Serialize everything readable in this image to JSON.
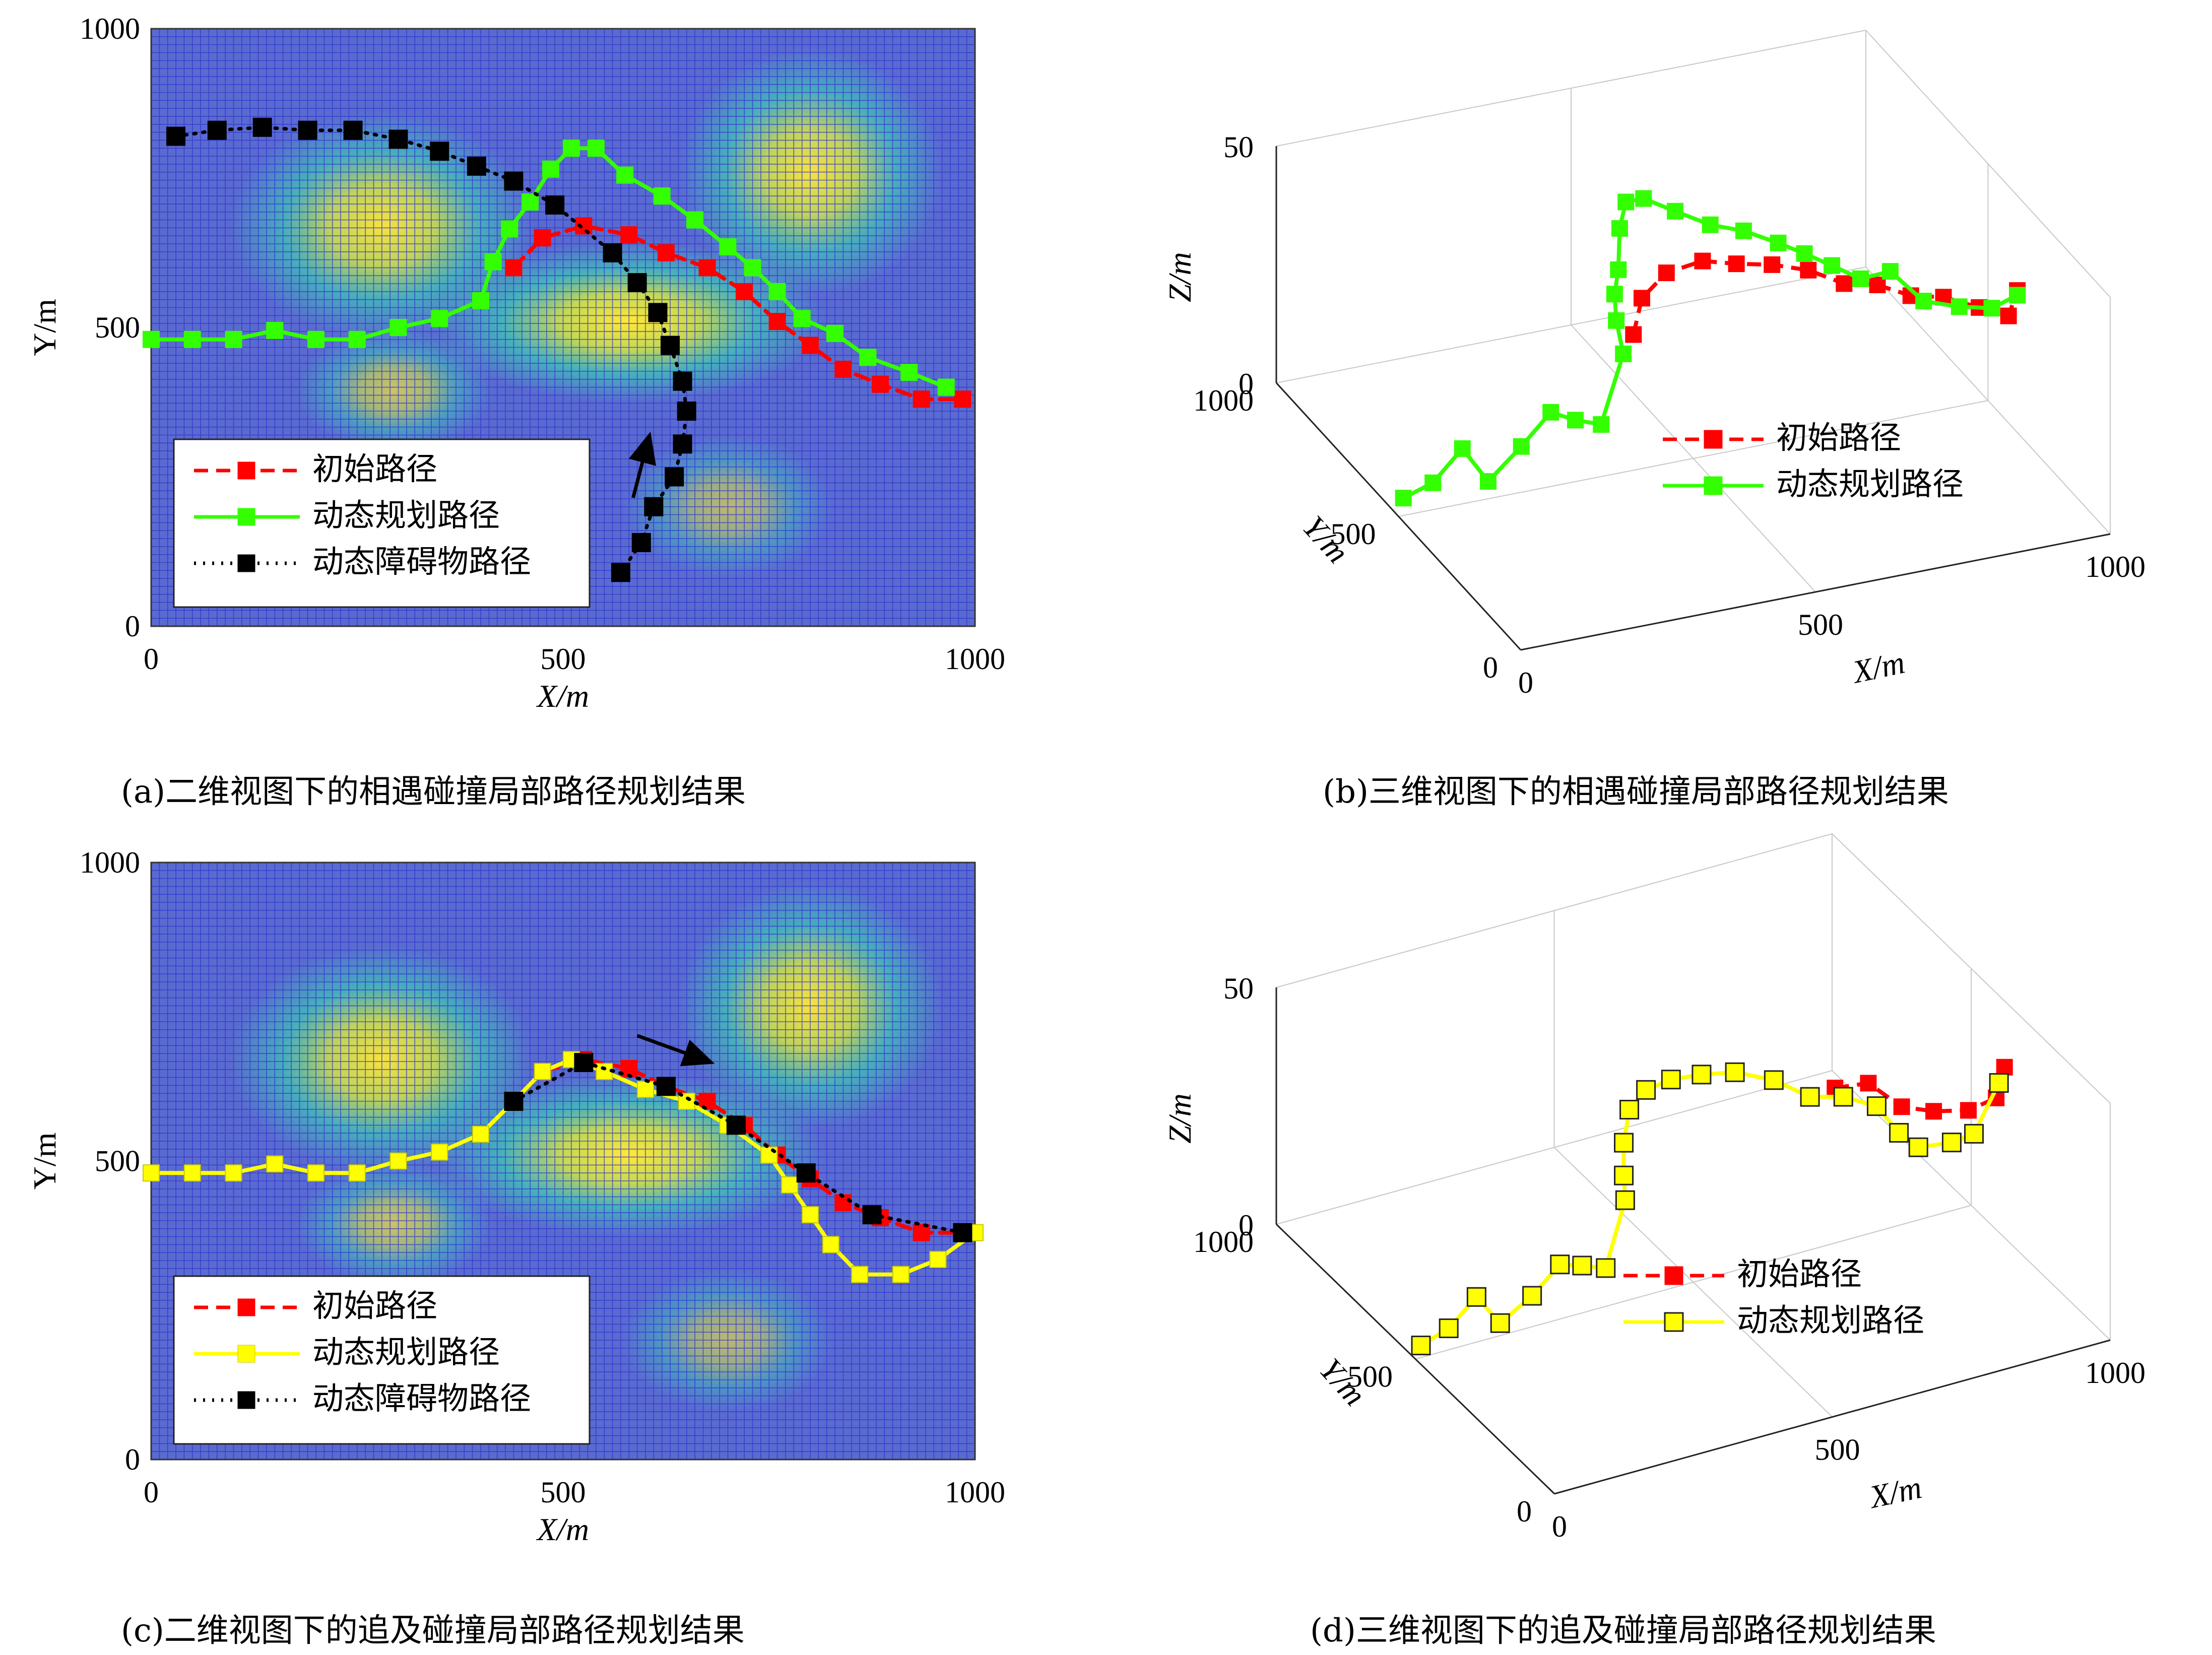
{
  "captions": {
    "a": "(a)二维视图下的相遇碰撞局部路径规划结果",
    "b": "(b)三维视图下的相遇碰撞局部路径规划结果",
    "c": "(c)二维视图下的追及碰撞局部路径规划结果",
    "d": "(d)三维视图下的追及碰撞局部路径规划结果"
  },
  "colors": {
    "initial": "#ff0000",
    "dynamic_green": "#33ff00",
    "dynamic_yellow": "#ffff00",
    "obstacle": "#000000",
    "grid_line": "#2f32d0",
    "background": "#5a6bd0"
  },
  "chart_data": [
    {
      "id": "a",
      "type": "line",
      "view": "2d",
      "xlabel": "X/m",
      "ylabel": "Y/m",
      "xlim": [
        0,
        1000
      ],
      "ylim": [
        0,
        1000
      ],
      "xticks": [
        "0",
        "500",
        "1000"
      ],
      "yticks": [
        "0",
        "500",
        "1000"
      ],
      "legend_position": "bottom-left",
      "hotspots": [
        {
          "x": 280,
          "y": 670,
          "rx": 115,
          "ry": 120,
          "level": 0.95
        },
        {
          "x": 800,
          "y": 760,
          "rx": 100,
          "ry": 130,
          "level": 0.95
        },
        {
          "x": 580,
          "y": 510,
          "rx": 150,
          "ry": 85,
          "level": 1.0
        },
        {
          "x": 295,
          "y": 395,
          "rx": 75,
          "ry": 65,
          "level": 0.7
        },
        {
          "x": 700,
          "y": 200,
          "rx": 80,
          "ry": 75,
          "level": 0.6
        }
      ],
      "series": [
        {
          "name": "初始路径",
          "color": "#ff0000",
          "dash": "dashed",
          "marker": "filled",
          "points": [
            [
              440,
              600
            ],
            [
              475,
              650
            ],
            [
              525,
              670
            ],
            [
              580,
              655
            ],
            [
              625,
              625
            ],
            [
              675,
              600
            ],
            [
              720,
              560
            ],
            [
              760,
              510
            ],
            [
              800,
              470
            ],
            [
              840,
              430
            ],
            [
              885,
              405
            ],
            [
              935,
              380
            ],
            [
              985,
              380
            ]
          ]
        },
        {
          "name": "动态规划路径",
          "color": "#33ff00",
          "dash": "solid",
          "marker": "filled",
          "points": [
            [
              0,
              480
            ],
            [
              50,
              480
            ],
            [
              100,
              480
            ],
            [
              150,
              495
            ],
            [
              200,
              480
            ],
            [
              250,
              480
            ],
            [
              300,
              500
            ],
            [
              350,
              515
            ],
            [
              400,
              545
            ],
            [
              415,
              610
            ],
            [
              435,
              665
            ],
            [
              460,
              710
            ],
            [
              485,
              765
            ],
            [
              510,
              800
            ],
            [
              540,
              800
            ],
            [
              575,
              755
            ],
            [
              620,
              720
            ],
            [
              660,
              680
            ],
            [
              700,
              635
            ],
            [
              730,
              600
            ],
            [
              760,
              560
            ],
            [
              790,
              515
            ],
            [
              830,
              490
            ],
            [
              870,
              450
            ],
            [
              920,
              425
            ],
            [
              965,
              400
            ]
          ]
        },
        {
          "name": "动态障碍物路径",
          "color": "#000000",
          "dash": "dotted",
          "marker": "filled",
          "points": [
            [
              30,
              820
            ],
            [
              80,
              830
            ],
            [
              135,
              835
            ],
            [
              190,
              830
            ],
            [
              245,
              830
            ],
            [
              300,
              815
            ],
            [
              350,
              795
            ],
            [
              395,
              770
            ],
            [
              440,
              745
            ],
            [
              490,
              705
            ],
            [
              560,
              625
            ],
            [
              590,
              575
            ],
            [
              615,
              525
            ],
            [
              630,
              470
            ],
            [
              645,
              410
            ],
            [
              650,
              360
            ],
            [
              645,
              305
            ],
            [
              635,
              250
            ],
            [
              610,
              200
            ],
            [
              595,
              140
            ],
            [
              570,
              90
            ]
          ]
        }
      ],
      "arrow": {
        "from": [
          585,
          215
        ],
        "to": [
          605,
          320
        ]
      }
    },
    {
      "id": "b",
      "type": "line",
      "view": "3d",
      "xlabel": "X/m",
      "ylabel": "Y/m",
      "zlabel": "Z/m",
      "xlim": [
        0,
        1000
      ],
      "ylim": [
        0,
        1000
      ],
      "zlim": [
        0,
        50
      ],
      "xticks": [
        "0",
        "500",
        "1000"
      ],
      "yticks": [
        "0",
        "500",
        "1000"
      ],
      "zticks": [
        "0",
        "50"
      ],
      "legend_position": "center-right",
      "series": [
        {
          "name": "初始路径",
          "color": "#ff0000",
          "dash": "dashed",
          "marker": "filled",
          "points": [
            [
              440,
              600,
              22
            ],
            [
              475,
              650,
              26
            ],
            [
              525,
              670,
              29
            ],
            [
              580,
              655,
              31
            ],
            [
              625,
              625,
              31
            ],
            [
              675,
              600,
              31
            ],
            [
              720,
              560,
              31
            ],
            [
              760,
              510,
              30
            ],
            [
              800,
              470,
              31
            ],
            [
              840,
              430,
              30
            ],
            [
              885,
              405,
              30
            ],
            [
              935,
              380,
              28
            ],
            [
              985,
              380,
              25
            ],
            [
              1000,
              380,
              30
            ]
          ]
        },
        {
          "name": "动态规划路径",
          "color": "#33ff00",
          "dash": "solid",
          "marker": "filled",
          "points": [
            [
              0,
              480,
              5
            ],
            [
              50,
              480,
              7
            ],
            [
              100,
              480,
              13
            ],
            [
              150,
              495,
              4
            ],
            [
              200,
              480,
              11
            ],
            [
              250,
              480,
              17
            ],
            [
              300,
              500,
              13
            ],
            [
              350,
              515,
              10
            ],
            [
              400,
              545,
              22
            ],
            [
              415,
              610,
              25
            ],
            [
              435,
              665,
              27
            ],
            [
              460,
              710,
              29
            ],
            [
              485,
              765,
              34
            ],
            [
              510,
              800,
              37
            ],
            [
              540,
              800,
              37
            ],
            [
              575,
              755,
              36
            ],
            [
              620,
              720,
              34
            ],
            [
              660,
              680,
              34
            ],
            [
              700,
              635,
              33
            ],
            [
              730,
              600,
              32
            ],
            [
              760,
              560,
              31
            ],
            [
              790,
              515,
              30
            ],
            [
              830,
              490,
              32
            ],
            [
              870,
              450,
              27
            ],
            [
              920,
              425,
              26
            ],
            [
              965,
              400,
              26
            ],
            [
              1000,
              380,
              29
            ]
          ]
        }
      ]
    },
    {
      "id": "c",
      "type": "line",
      "view": "2d",
      "xlabel": "X/m",
      "ylabel": "Y/m",
      "xlim": [
        0,
        1000
      ],
      "ylim": [
        0,
        1000
      ],
      "xticks": [
        "0",
        "500",
        "1000"
      ],
      "yticks": [
        "0",
        "500",
        "1000"
      ],
      "legend_position": "bottom-left",
      "hotspots": [
        {
          "x": 280,
          "y": 670,
          "rx": 115,
          "ry": 120,
          "level": 0.95
        },
        {
          "x": 800,
          "y": 760,
          "rx": 100,
          "ry": 130,
          "level": 0.95
        },
        {
          "x": 580,
          "y": 510,
          "rx": 150,
          "ry": 85,
          "level": 1.0
        },
        {
          "x": 295,
          "y": 395,
          "rx": 75,
          "ry": 65,
          "level": 0.7
        },
        {
          "x": 700,
          "y": 200,
          "rx": 80,
          "ry": 75,
          "level": 0.6
        }
      ],
      "series": [
        {
          "name": "初始路径",
          "color": "#ff0000",
          "dash": "dashed",
          "marker": "filled",
          "points": [
            [
              440,
              600
            ],
            [
              475,
              650
            ],
            [
              525,
              670
            ],
            [
              580,
              655
            ],
            [
              625,
              625
            ],
            [
              675,
              600
            ],
            [
              720,
              560
            ],
            [
              760,
              510
            ],
            [
              800,
              470
            ],
            [
              840,
              430
            ],
            [
              885,
              405
            ],
            [
              935,
              380
            ],
            [
              985,
              380
            ]
          ]
        },
        {
          "name": "动态规划路径",
          "color": "#ffff00",
          "dash": "solid",
          "marker": "filled",
          "points": [
            [
              0,
              480
            ],
            [
              50,
              480
            ],
            [
              100,
              480
            ],
            [
              150,
              495
            ],
            [
              200,
              480
            ],
            [
              250,
              480
            ],
            [
              300,
              500
            ],
            [
              350,
              515
            ],
            [
              400,
              545
            ],
            [
              440,
              600
            ],
            [
              475,
              650
            ],
            [
              510,
              670
            ],
            [
              550,
              650
            ],
            [
              600,
              620
            ],
            [
              650,
              600
            ],
            [
              700,
              560
            ],
            [
              750,
              510
            ],
            [
              775,
              460
            ],
            [
              800,
              410
            ],
            [
              825,
              360
            ],
            [
              860,
              310
            ],
            [
              910,
              310
            ],
            [
              955,
              335
            ],
            [
              1000,
              380
            ]
          ]
        },
        {
          "name": "动态障碍物路径",
          "color": "#000000",
          "dash": "dotted",
          "marker": "filled",
          "points": [
            [
              440,
              600
            ],
            [
              525,
              665
            ],
            [
              625,
              625
            ],
            [
              710,
              560
            ],
            [
              795,
              480
            ],
            [
              875,
              410
            ],
            [
              985,
              380
            ]
          ]
        }
      ],
      "arrow": {
        "from": [
          590,
          710
        ],
        "to": [
          680,
          665
        ]
      }
    },
    {
      "id": "d",
      "type": "line",
      "view": "3d",
      "xlabel": "X/m",
      "ylabel": "Y/m",
      "zlabel": "Z/m",
      "xlim": [
        0,
        1000
      ],
      "ylim": [
        0,
        1000
      ],
      "zlim": [
        0,
        50
      ],
      "xticks": [
        "0",
        "500",
        "1000"
      ],
      "yticks": [
        "0",
        "500",
        "1000"
      ],
      "zticks": [
        "0",
        "50"
      ],
      "legend_position": "center-right",
      "series": [
        {
          "name": "初始路径",
          "color": "#ff0000",
          "dash": "dashed",
          "marker": "filled",
          "points": [
            [
              760,
              510,
              32
            ],
            [
              800,
              470,
              34
            ],
            [
              840,
              430,
              30
            ],
            [
              885,
              405,
              29
            ],
            [
              935,
              380,
              29
            ],
            [
              985,
              380,
              30
            ],
            [
              1000,
              380,
              36
            ]
          ]
        },
        {
          "name": "动态规划路径",
          "color": "#ffff00",
          "dash": "solid",
          "marker": "hollow",
          "points": [
            [
              0,
              480,
              4
            ],
            [
              50,
              480,
              6
            ],
            [
              100,
              480,
              11
            ],
            [
              150,
              495,
              3
            ],
            [
              200,
              480,
              8
            ],
            [
              250,
              480,
              13
            ],
            [
              300,
              500,
              10
            ],
            [
              350,
              515,
              7
            ],
            [
              400,
              545,
              18
            ],
            [
              420,
              590,
              20
            ],
            [
              440,
              630,
              24
            ],
            [
              475,
              680,
              27
            ],
            [
              520,
              710,
              28
            ],
            [
              570,
              720,
              28
            ],
            [
              620,
              710,
              28
            ],
            [
              670,
              690,
              28
            ],
            [
              720,
              650,
              27
            ],
            [
              760,
              600,
              25
            ],
            [
              800,
              560,
              26
            ],
            [
              840,
              520,
              25
            ],
            [
              860,
              480,
              21
            ],
            [
              880,
              450,
              19
            ],
            [
              920,
              410,
              21
            ],
            [
              950,
              390,
              23
            ],
            [
              990,
              380,
              33
            ]
          ]
        }
      ]
    }
  ]
}
